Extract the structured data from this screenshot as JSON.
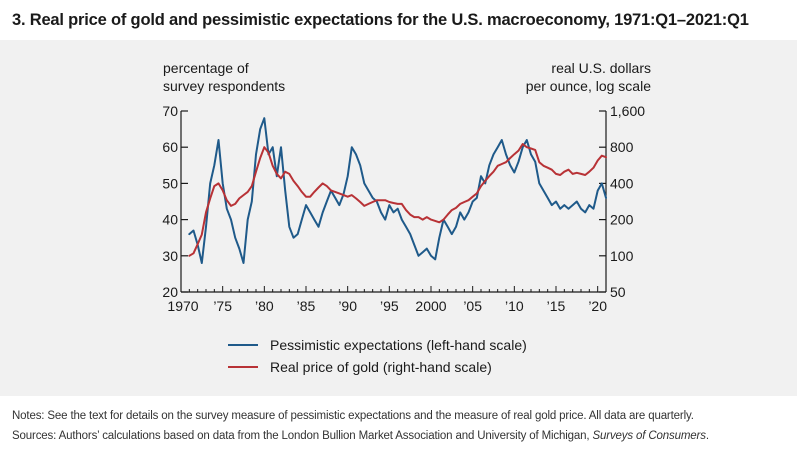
{
  "title": "3. Real price of gold and pessimistic expectations for the U.S. macroeconomy, 1971:Q1–2021:Q1",
  "left_axis_title": [
    "percentage of",
    "survey respondents"
  ],
  "right_axis_title": [
    "real U.S. dollars",
    "per ounce, log scale"
  ],
  "notes": {
    "line1": "Notes: See the text for details on the survey measure of pessimistic expectations and the measure of real gold price. All data are quarterly.",
    "line2_prefix": "Sources: Authors’ calculations based on data from the London Bullion Market Association and University of Michigan, ",
    "line2_italic": "Surveys of Consumers",
    "line2_suffix": "."
  },
  "colors": {
    "pessimism": "#1f5a8a",
    "gold": "#b83236",
    "axis": "#1a1a1a",
    "panel": "#f1f1f1"
  },
  "chart_data": {
    "type": "line",
    "xlim": [
      1970,
      2021
    ],
    "x_ticks": [
      1970,
      1975,
      1980,
      1985,
      1990,
      1995,
      2000,
      2005,
      2010,
      2015,
      2020
    ],
    "x_tick_labels": [
      "1970",
      "’75",
      "’80",
      "’85",
      "’90",
      "’95",
      "2000",
      "’05",
      "’10",
      "’15",
      "’20"
    ],
    "left_axis": {
      "ylim": [
        20,
        70
      ],
      "ticks": [
        20,
        30,
        40,
        50,
        60,
        70
      ],
      "tick_labels": [
        "20",
        "30",
        "40",
        "50",
        "60",
        "70"
      ]
    },
    "right_axis": {
      "scale": "log",
      "ylim": [
        50,
        1600
      ],
      "ticks": [
        50,
        100,
        200,
        400,
        800,
        1600
      ],
      "tick_labels": [
        "50",
        "100",
        "200",
        "400",
        "800",
        "1,600"
      ]
    },
    "legend_position": "bottom",
    "series": [
      {
        "name": "Pessimistic expectations (left-hand scale)",
        "axis": "left",
        "x": [
          1971.0,
          1971.5,
          1972.0,
          1972.5,
          1973.0,
          1973.5,
          1974.0,
          1974.5,
          1975.0,
          1975.5,
          1976.0,
          1976.5,
          1977.0,
          1977.5,
          1978.0,
          1978.5,
          1979.0,
          1979.5,
          1980.0,
          1980.5,
          1981.0,
          1981.5,
          1982.0,
          1982.5,
          1983.0,
          1983.5,
          1984.0,
          1984.5,
          1985.0,
          1985.5,
          1986.0,
          1986.5,
          1987.0,
          1987.5,
          1988.0,
          1988.5,
          1989.0,
          1989.5,
          1990.0,
          1990.5,
          1991.0,
          1991.5,
          1992.0,
          1992.5,
          1993.0,
          1993.5,
          1994.0,
          1994.5,
          1995.0,
          1995.5,
          1996.0,
          1996.5,
          1997.0,
          1997.5,
          1998.0,
          1998.5,
          1999.0,
          1999.5,
          2000.0,
          2000.5,
          2001.0,
          2001.5,
          2002.0,
          2002.5,
          2003.0,
          2003.5,
          2004.0,
          2004.5,
          2005.0,
          2005.5,
          2006.0,
          2006.5,
          2007.0,
          2007.5,
          2008.0,
          2008.5,
          2009.0,
          2009.5,
          2010.0,
          2010.5,
          2011.0,
          2011.5,
          2012.0,
          2012.5,
          2013.0,
          2013.5,
          2014.0,
          2014.5,
          2015.0,
          2015.5,
          2016.0,
          2016.5,
          2017.0,
          2017.5,
          2018.0,
          2018.5,
          2019.0,
          2019.5,
          2020.0,
          2020.5,
          2021.0
        ],
        "values": [
          36,
          37,
          33,
          28,
          38,
          50,
          55,
          62,
          50,
          43,
          40,
          35,
          32,
          28,
          40,
          45,
          58,
          65,
          68,
          58,
          60,
          52,
          60,
          48,
          38,
          35,
          36,
          40,
          44,
          42,
          40,
          38,
          42,
          45,
          48,
          46,
          44,
          47,
          52,
          60,
          58,
          55,
          50,
          48,
          46,
          45,
          42,
          40,
          44,
          42,
          43,
          40,
          38,
          36,
          33,
          30,
          31,
          32,
          30,
          29,
          35,
          40,
          38,
          36,
          38,
          42,
          40,
          42,
          45,
          46,
          52,
          50,
          55,
          58,
          60,
          62,
          58,
          55,
          53,
          56,
          60,
          62,
          58,
          56,
          50,
          48,
          46,
          44,
          45,
          43,
          44,
          43,
          44,
          45,
          43,
          42,
          44,
          43,
          48,
          50,
          46
        ]
      },
      {
        "name": "Real price of gold (right-hand scale)",
        "axis": "right",
        "x": [
          1971.0,
          1971.5,
          1972.0,
          1972.5,
          1973.0,
          1973.5,
          1974.0,
          1974.5,
          1975.0,
          1975.5,
          1976.0,
          1976.5,
          1977.0,
          1977.5,
          1978.0,
          1978.5,
          1979.0,
          1979.5,
          1980.0,
          1980.5,
          1981.0,
          1981.5,
          1982.0,
          1982.5,
          1983.0,
          1983.5,
          1984.0,
          1984.5,
          1985.0,
          1985.5,
          1986.0,
          1986.5,
          1987.0,
          1987.5,
          1988.0,
          1988.5,
          1989.0,
          1989.5,
          1990.0,
          1990.5,
          1991.0,
          1991.5,
          1992.0,
          1992.5,
          1993.0,
          1993.5,
          1994.0,
          1994.5,
          1995.0,
          1995.5,
          1996.0,
          1996.5,
          1997.0,
          1997.5,
          1998.0,
          1998.5,
          1999.0,
          1999.5,
          2000.0,
          2000.5,
          2001.0,
          2001.5,
          2002.0,
          2002.5,
          2003.0,
          2003.5,
          2004.0,
          2004.5,
          2005.0,
          2005.5,
          2006.0,
          2006.5,
          2007.0,
          2007.5,
          2008.0,
          2008.5,
          2009.0,
          2009.5,
          2010.0,
          2010.5,
          2011.0,
          2011.5,
          2012.0,
          2012.5,
          2013.0,
          2013.5,
          2014.0,
          2014.5,
          2015.0,
          2015.5,
          2016.0,
          2016.5,
          2017.0,
          2017.5,
          2018.0,
          2018.5,
          2019.0,
          2019.5,
          2020.0,
          2020.5,
          2021.0
        ],
        "values": [
          100,
          105,
          125,
          150,
          230,
          300,
          380,
          400,
          350,
          290,
          260,
          270,
          300,
          320,
          340,
          380,
          500,
          650,
          800,
          720,
          560,
          480,
          440,
          500,
          480,
          420,
          380,
          340,
          310,
          310,
          340,
          370,
          400,
          380,
          350,
          340,
          330,
          320,
          310,
          320,
          300,
          280,
          260,
          270,
          280,
          290,
          290,
          290,
          280,
          275,
          270,
          270,
          240,
          220,
          210,
          210,
          200,
          210,
          200,
          195,
          190,
          200,
          220,
          240,
          250,
          270,
          280,
          290,
          310,
          330,
          380,
          420,
          460,
          500,
          560,
          580,
          600,
          650,
          700,
          750,
          850,
          800,
          780,
          760,
          600,
          560,
          540,
          520,
          480,
          470,
          500,
          520,
          480,
          490,
          480,
          470,
          500,
          540,
          620,
          680,
          660
        ]
      }
    ]
  }
}
